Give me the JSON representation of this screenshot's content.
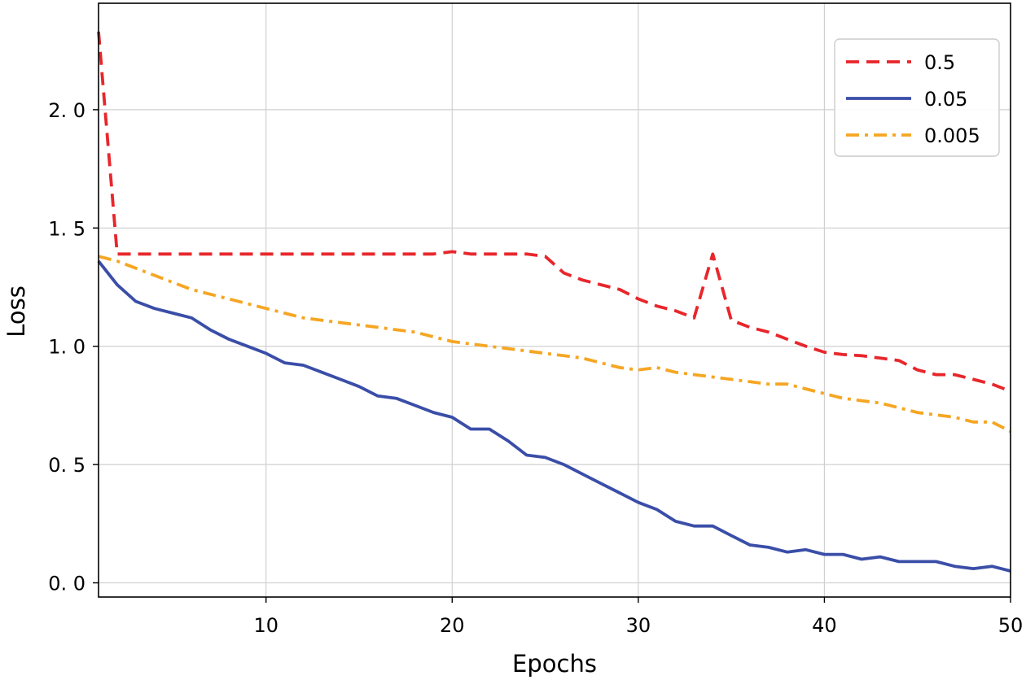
{
  "chart_data": {
    "type": "line",
    "title": "",
    "xlabel": "Epochs",
    "ylabel": "Loss",
    "xlim": [
      1,
      50
    ],
    "ylim": [
      -0.06,
      2.45
    ],
    "x_ticks": [
      10,
      20,
      30,
      40,
      50
    ],
    "x_tick_labels": [
      "10",
      "20",
      "30",
      "40",
      "50"
    ],
    "y_ticks": [
      0.0,
      0.5,
      1.0,
      1.5,
      2.0
    ],
    "y_tick_labels": [
      "0. 0",
      "0. 5",
      "1. 0",
      "1. 5",
      "2. 0"
    ],
    "grid": true,
    "legend_position": "top-right",
    "x": [
      1,
      2,
      3,
      4,
      5,
      6,
      7,
      8,
      9,
      10,
      11,
      12,
      13,
      14,
      15,
      16,
      17,
      18,
      19,
      20,
      21,
      22,
      23,
      24,
      25,
      26,
      27,
      28,
      29,
      30,
      31,
      32,
      33,
      34,
      35,
      36,
      37,
      38,
      39,
      40,
      41,
      42,
      43,
      44,
      45,
      46,
      47,
      48,
      49,
      50
    ],
    "series": [
      {
        "name": "0.5",
        "color": "#e8262b",
        "style": "dashed",
        "values": [
          2.33,
          1.39,
          1.39,
          1.39,
          1.39,
          1.39,
          1.39,
          1.39,
          1.39,
          1.39,
          1.39,
          1.39,
          1.39,
          1.39,
          1.39,
          1.39,
          1.39,
          1.39,
          1.39,
          1.4,
          1.39,
          1.39,
          1.39,
          1.39,
          1.38,
          1.31,
          1.28,
          1.26,
          1.24,
          1.2,
          1.17,
          1.15,
          1.12,
          1.39,
          1.11,
          1.08,
          1.06,
          1.03,
          1.0,
          0.975,
          0.965,
          0.96,
          0.95,
          0.94,
          0.9,
          0.88,
          0.88,
          0.86,
          0.84,
          0.81
        ]
      },
      {
        "name": "0.05",
        "color": "#3a4ea8",
        "style": "solid",
        "values": [
          1.36,
          1.26,
          1.19,
          1.16,
          1.14,
          1.12,
          1.07,
          1.03,
          1.0,
          0.97,
          0.93,
          0.92,
          0.89,
          0.86,
          0.83,
          0.79,
          0.78,
          0.75,
          0.72,
          0.7,
          0.65,
          0.65,
          0.6,
          0.54,
          0.53,
          0.5,
          0.46,
          0.42,
          0.38,
          0.34,
          0.31,
          0.26,
          0.24,
          0.24,
          0.2,
          0.16,
          0.15,
          0.13,
          0.14,
          0.12,
          0.12,
          0.1,
          0.11,
          0.09,
          0.09,
          0.09,
          0.07,
          0.06,
          0.07,
          0.05
        ]
      },
      {
        "name": "0.005",
        "color": "#f5a623",
        "style": "dashdot",
        "values": [
          1.38,
          1.36,
          1.33,
          1.3,
          1.27,
          1.24,
          1.22,
          1.2,
          1.18,
          1.16,
          1.14,
          1.12,
          1.11,
          1.1,
          1.09,
          1.08,
          1.07,
          1.06,
          1.04,
          1.02,
          1.01,
          1.0,
          0.99,
          0.98,
          0.97,
          0.96,
          0.95,
          0.93,
          0.91,
          0.9,
          0.91,
          0.89,
          0.88,
          0.87,
          0.86,
          0.85,
          0.84,
          0.84,
          0.82,
          0.8,
          0.78,
          0.77,
          0.76,
          0.74,
          0.72,
          0.71,
          0.7,
          0.68,
          0.68,
          0.64
        ]
      }
    ]
  }
}
